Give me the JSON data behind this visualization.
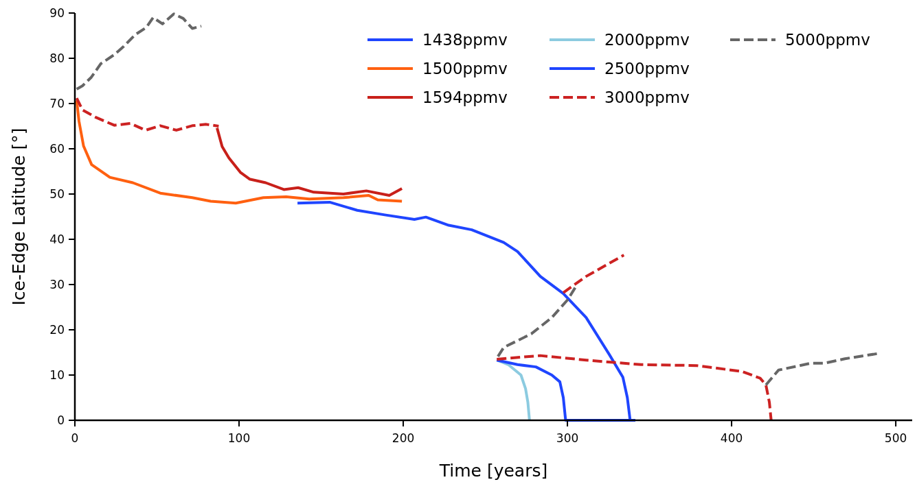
{
  "chart_data": {
    "type": "line",
    "xlabel": "Time [years]",
    "ylabel": "Ice-Edge Latitude [°]",
    "xlim": [
      0,
      510
    ],
    "ylim": [
      0,
      90
    ],
    "xticks": [
      0,
      100,
      200,
      300,
      400,
      500
    ],
    "yticks": [
      0,
      10,
      20,
      30,
      40,
      50,
      60,
      70,
      80,
      90
    ],
    "grid": false,
    "legend": "top right",
    "marker": "none",
    "series": [
      {
        "name": "1438ppmv",
        "color": "#1f45ff",
        "line_style": "solid",
        "x": [
          135.6,
          155.2,
          172,
          188.7,
          206.8,
          213.8,
          227.7,
          241.7,
          261.2,
          269.6,
          283.5,
          297.5,
          311.4,
          325.4,
          333.8,
          336.5,
          338.2
        ],
        "values": [
          48,
          48.2,
          46.4,
          45.4,
          44.4,
          44.9,
          43.1,
          42.1,
          39.3,
          37.3,
          31.8,
          28,
          22.7,
          14.6,
          9.5,
          5,
          0
        ]
      },
      {
        "name": "1500ppmv",
        "color": "#ff6010",
        "line_style": "solid",
        "x": [
          1.1,
          2.5,
          5.3,
          10.2,
          21.3,
          35.3,
          52,
          71.5,
          82.7,
          98,
          114.8,
          128.7,
          142.7,
          163.6,
          179,
          184.5,
          199.2
        ],
        "values": [
          70.7,
          66.1,
          60.6,
          56.5,
          53.7,
          52.5,
          50.2,
          49.2,
          48.4,
          48,
          49.2,
          49.4,
          48.9,
          49.2,
          49.7,
          48.7,
          48.4
        ]
      },
      {
        "name": "1594ppmv",
        "color": "#c8201a",
        "line_style": "solid",
        "x": [
          86.6,
          89.7,
          93.8,
          100.8,
          106.4,
          116.2,
          127.3,
          136,
          145.5,
          163.6,
          177.5,
          191.5,
          199.2
        ],
        "values": [
          64.6,
          60.5,
          58,
          54.8,
          53.3,
          52.5,
          51,
          51.4,
          50.4,
          50,
          50.7,
          49.7,
          51.2
        ]
      },
      {
        "name": "2000ppmv",
        "color": "#8ccbe0",
        "line_style": "solid",
        "x": [
          257,
          264,
          271.7,
          274.5,
          275.9,
          276.9
        ],
        "values": [
          13.3,
          12.3,
          10,
          7,
          4,
          0
        ]
      },
      {
        "name": "2500ppmv",
        "color": "#1f45ff",
        "line_style": "solid",
        "x": [
          257,
          269.6,
          280.8,
          290.5,
          295.4,
          297.5,
          298.9,
          341.4
        ],
        "values": [
          13.3,
          12.3,
          11.8,
          10,
          8.5,
          5,
          0,
          0
        ]
      },
      {
        "name": "3000ppmv",
        "color": "#cc2222",
        "line_style": "dashed",
        "x": [
          1.1,
          4.6,
          13,
          24,
          33.9,
          43,
          52,
          61.8,
          71.5,
          80,
          87.6,
          170,
          257,
          283.5,
          311.4,
          344.9,
          378.4,
          406.3,
          417.4,
          420.9,
          423,
          424.1,
          360,
          297.5,
          311.4,
          332.4,
          334.4
        ],
        "values": [
          71.2,
          68.6,
          66.9,
          65.2,
          65.6,
          64.1,
          65.1,
          64.1,
          65.1,
          65.4,
          65,
          null,
          13.5,
          14.3,
          13.3,
          12.3,
          12.1,
          10.8,
          9.3,
          7.8,
          4,
          0,
          null,
          28.2,
          31.8,
          36.1,
          36.5
        ]
      },
      {
        "name": "5000ppmv",
        "color": "#666666",
        "line_style": "dashed",
        "x": [
          1.1,
          4.6,
          10,
          15.8,
          24,
          29.7,
          36.7,
          43.5,
          47.7,
          53.4,
          60.3,
          66,
          71.5,
          77,
          160,
          257.7,
          261.2,
          278,
          290.5,
          300.3,
          305.9,
          360,
          420.9,
          428.6,
          448.1,
          456.5,
          469,
          490
        ],
        "values": [
          73.2,
          73.9,
          75.8,
          78.8,
          80.8,
          82.6,
          85.2,
          86.8,
          89,
          87.6,
          89.8,
          88.8,
          86.6,
          87.1,
          null,
          14.1,
          16.1,
          19.1,
          22.7,
          26.7,
          30,
          null,
          7.8,
          11.1,
          12.6,
          12.6,
          13.6,
          14.8
        ]
      }
    ]
  }
}
